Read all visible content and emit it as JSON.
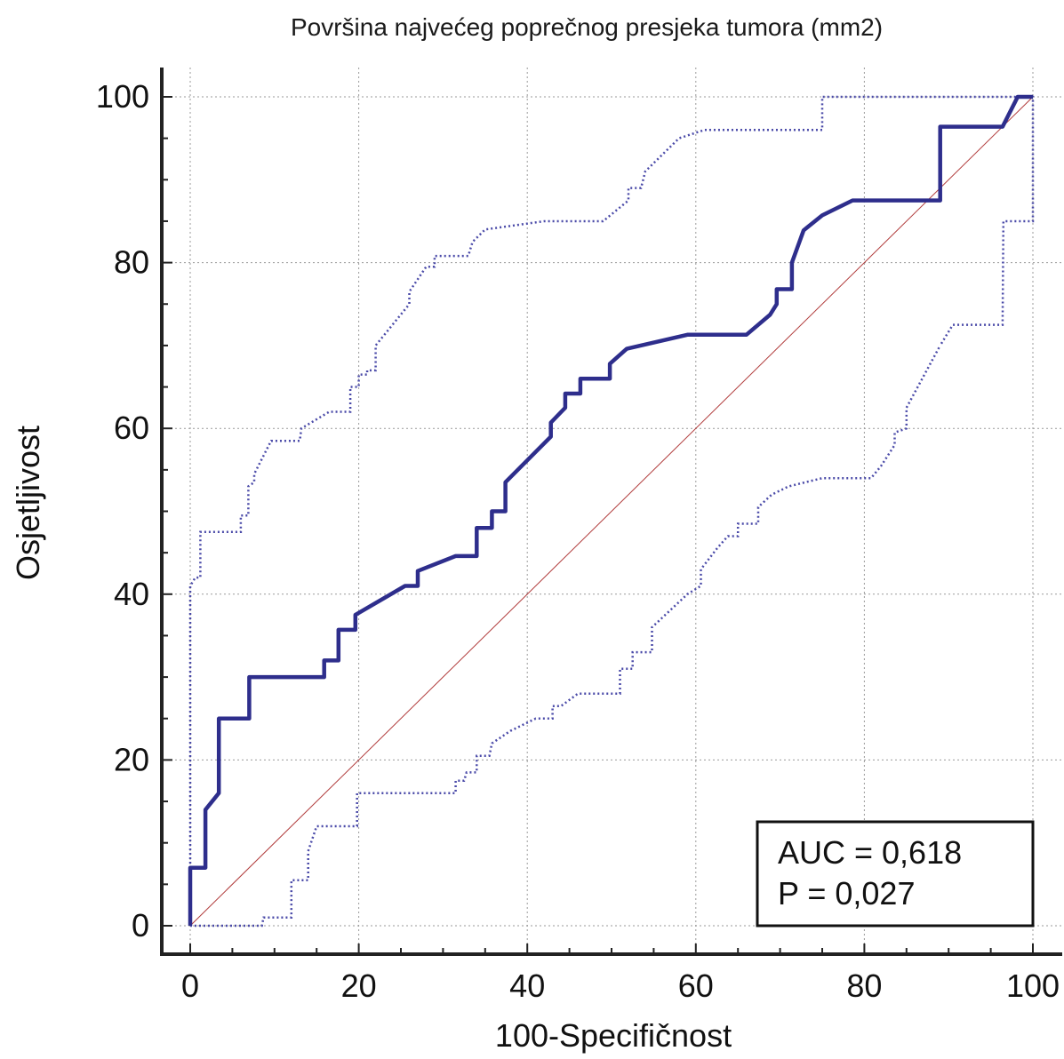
{
  "chart_data": {
    "type": "line",
    "title": "Površina najvećeg poprečnog presjeka tumora (mm2)",
    "xlabel": "100-Specifičnost",
    "ylabel": "Osjetljivost",
    "xlim": [
      0,
      100
    ],
    "ylim": [
      0,
      100
    ],
    "xticks": [
      "0",
      "20",
      "40",
      "60",
      "80",
      "100"
    ],
    "yticks": [
      "0",
      "20",
      "40",
      "60",
      "80",
      "100"
    ],
    "grid": true,
    "annotation": {
      "auc_label": "AUC = 0,618",
      "p_label": "P = 0,027"
    },
    "colors": {
      "roc": "#2e2e8c",
      "ci": "#4a4aa8",
      "diagonal": "#b03a3a",
      "grid": "#9a9a9a"
    },
    "series": [
      {
        "role": "roc",
        "points": [
          [
            0,
            0
          ],
          [
            0,
            7
          ],
          [
            1.8,
            7
          ],
          [
            1.8,
            14
          ],
          [
            3.4,
            16
          ],
          [
            3.4,
            25
          ],
          [
            7,
            25
          ],
          [
            7,
            30
          ],
          [
            15.9,
            30
          ],
          [
            15.9,
            32
          ],
          [
            17.6,
            32
          ],
          [
            17.6,
            35.7
          ],
          [
            19.6,
            35.7
          ],
          [
            19.6,
            37.5
          ],
          [
            25.5,
            41
          ],
          [
            27,
            41
          ],
          [
            27,
            42.8
          ],
          [
            31.5,
            44.6
          ],
          [
            34,
            44.6
          ],
          [
            34,
            48
          ],
          [
            35.8,
            48
          ],
          [
            35.8,
            50
          ],
          [
            37.4,
            50
          ],
          [
            37.4,
            53.5
          ],
          [
            42.8,
            59
          ],
          [
            42.8,
            60.7
          ],
          [
            44.5,
            62.5
          ],
          [
            44.5,
            64.2
          ],
          [
            46.3,
            64.2
          ],
          [
            46.3,
            66
          ],
          [
            49.8,
            66
          ],
          [
            49.8,
            67.8
          ],
          [
            51.8,
            69.6
          ],
          [
            59,
            71.3
          ],
          [
            66,
            71.3
          ],
          [
            68.8,
            73.7
          ],
          [
            69.6,
            75
          ],
          [
            69.6,
            76.8
          ],
          [
            71.4,
            76.8
          ],
          [
            71.4,
            80
          ],
          [
            72.8,
            83.9
          ],
          [
            75,
            85.7
          ],
          [
            78.6,
            87.5
          ],
          [
            89,
            87.5
          ],
          [
            89,
            96.4
          ],
          [
            96.4,
            96.4
          ],
          [
            98.2,
            100
          ],
          [
            100,
            100
          ]
        ]
      },
      {
        "role": "ci-upper",
        "points": [
          [
            0,
            0
          ],
          [
            0,
            41
          ],
          [
            0.6,
            42
          ],
          [
            1.2,
            42
          ],
          [
            1.2,
            47.5
          ],
          [
            6,
            47.5
          ],
          [
            6,
            49.5
          ],
          [
            6.9,
            49.5
          ],
          [
            6.9,
            53
          ],
          [
            7.6,
            53.5
          ],
          [
            7.6,
            54.5
          ],
          [
            9.6,
            58.5
          ],
          [
            13,
            58.5
          ],
          [
            13.2,
            60
          ],
          [
            16.5,
            62
          ],
          [
            19,
            62
          ],
          [
            19,
            65
          ],
          [
            20,
            65
          ],
          [
            20,
            66.5
          ],
          [
            21,
            66.5
          ],
          [
            21,
            67
          ],
          [
            22,
            67
          ],
          [
            22,
            70
          ],
          [
            26,
            75
          ],
          [
            26,
            76.5
          ],
          [
            28,
            79.5
          ],
          [
            29,
            79.5
          ],
          [
            29,
            80.8
          ],
          [
            33,
            80.8
          ],
          [
            33.5,
            82.5
          ],
          [
            35,
            84
          ],
          [
            42,
            85
          ],
          [
            49,
            85
          ],
          [
            52,
            87.5
          ],
          [
            52,
            89
          ],
          [
            53.5,
            89
          ],
          [
            54,
            91
          ],
          [
            55,
            92
          ],
          [
            58,
            95
          ],
          [
            61,
            96
          ],
          [
            75,
            96
          ],
          [
            75,
            100
          ],
          [
            100,
            100
          ],
          [
            100,
            85
          ],
          [
            96.5,
            85
          ],
          [
            96.4,
            72.5
          ],
          [
            90.5,
            72.5
          ],
          [
            89,
            70
          ]
        ]
      },
      {
        "role": "ci-lower",
        "points": [
          [
            0,
            0
          ],
          [
            8.5,
            0
          ],
          [
            8.7,
            1
          ],
          [
            12,
            1
          ],
          [
            12,
            5.5
          ],
          [
            14,
            5.5
          ],
          [
            14,
            9
          ],
          [
            15,
            12
          ],
          [
            19.8,
            12
          ],
          [
            19.8,
            16
          ],
          [
            31.5,
            16
          ],
          [
            31.5,
            17.5
          ],
          [
            32.5,
            17.5
          ],
          [
            32.8,
            18.5
          ],
          [
            34,
            18.5
          ],
          [
            34,
            20.5
          ],
          [
            35.5,
            20.5
          ],
          [
            35.8,
            22
          ],
          [
            38,
            23.5
          ],
          [
            41,
            25
          ],
          [
            43,
            25
          ],
          [
            43,
            26.5
          ],
          [
            44,
            26.5
          ],
          [
            46,
            28
          ],
          [
            51,
            28
          ],
          [
            51,
            31
          ],
          [
            52.5,
            31
          ],
          [
            52.5,
            33
          ],
          [
            54.8,
            33
          ],
          [
            54.8,
            36
          ],
          [
            59,
            40
          ],
          [
            60.6,
            41
          ],
          [
            60.6,
            43
          ],
          [
            62.5,
            45.5
          ],
          [
            63.8,
            47
          ],
          [
            65,
            47
          ],
          [
            65,
            48.5
          ],
          [
            67.4,
            48.5
          ],
          [
            67.4,
            50.5
          ],
          [
            69,
            52
          ],
          [
            71,
            53
          ],
          [
            75,
            54
          ],
          [
            80.8,
            54
          ],
          [
            82,
            55.5
          ],
          [
            83.6,
            58
          ],
          [
            83.6,
            59.5
          ],
          [
            85,
            60
          ],
          [
            85,
            62.5
          ],
          [
            89,
            70
          ]
        ]
      }
    ]
  }
}
